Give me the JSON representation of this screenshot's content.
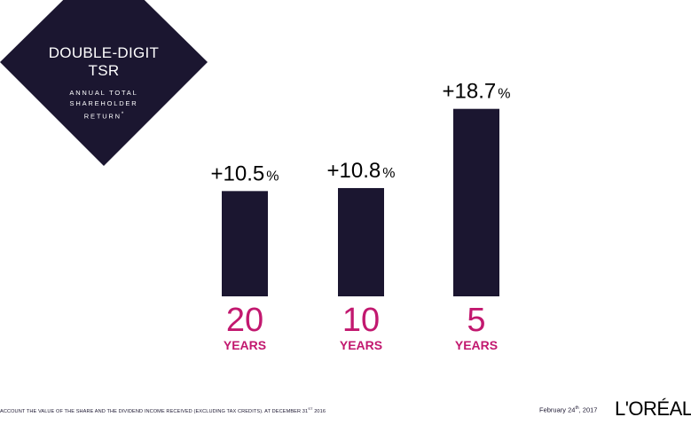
{
  "badge": {
    "title_line1": "DOUBLE-DIGIT",
    "title_line2": "TSR",
    "subtitle_line1": "ANNUAL TOTAL",
    "subtitle_line2": "SHAREHOLDER",
    "subtitle_line3": "RETURN",
    "subtitle_mark": "*"
  },
  "chart_data": {
    "type": "bar",
    "categories": [
      "20",
      "10",
      "5"
    ],
    "category_unit": "YEARS",
    "values": [
      10.5,
      10.8,
      18.7
    ],
    "data_labels": [
      "+10.5",
      "+10.8",
      "+18.7"
    ],
    "data_label_unit": "%",
    "grid": false,
    "legend": "none"
  },
  "footer": {
    "footnote": "ACCOUNT THE VALUE OF THE SHARE AND THE DIVIDEND INCOME RECEIVED (EXCLUDING TAX CREDITS). AT DECEMBER 31",
    "footnote_sup": "ST",
    "footnote_year": " 2016",
    "date_prefix": "February 24",
    "date_sup": "th",
    "date_year": ", 2017",
    "logo": "L'ORÉAL"
  },
  "colors": {
    "bar": "#1b1630",
    "accent": "#c2186f",
    "text": "#000000"
  }
}
